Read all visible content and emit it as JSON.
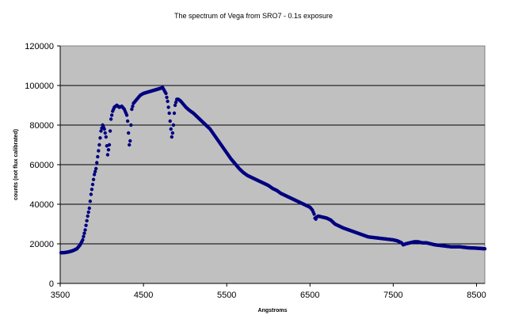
{
  "chart_data": {
    "type": "scatter",
    "title": "The spectrum of Vega from SRO7 - 0.1s exposure",
    "xlabel": "Angstroms",
    "ylabel": "counts (not flux calibrated)",
    "xlim": [
      3500,
      8600
    ],
    "ylim": [
      0,
      120000
    ],
    "xticks": [
      3500,
      4500,
      5500,
      6500,
      7500,
      8500
    ],
    "yticks": [
      0,
      20000,
      40000,
      60000,
      80000,
      100000,
      120000
    ],
    "xtick_labels": [
      "3500",
      "4500",
      "5500",
      "6500",
      "7500",
      "8500"
    ],
    "ytick_labels": [
      "0",
      "20000",
      "40000",
      "60000",
      "80000",
      "100000",
      "120000"
    ],
    "grid": "horizontal",
    "legend": "none",
    "plot_background": "#c0c0c0",
    "marker_color": "#000080",
    "series": [
      {
        "x": [
          3510,
          3560,
          3610,
          3650,
          3700,
          3740,
          3770,
          3800,
          3830,
          3850,
          3870,
          3890,
          3910,
          3930,
          3950,
          3970,
          3990,
          4010,
          4030,
          4050,
          4070,
          4090,
          4100,
          4110,
          4130,
          4150,
          4180,
          4210,
          4240,
          4270,
          4300,
          4310,
          4320,
          4330,
          4340,
          4350,
          4360,
          4380,
          4400,
          4430,
          4460,
          4500,
          4540,
          4580,
          4620,
          4660,
          4700,
          4730,
          4750,
          4770,
          4790,
          4810,
          4830,
          4840,
          4850,
          4860,
          4870,
          4880,
          4900,
          4920,
          4950,
          4980,
          5010,
          5050,
          5100,
          5150,
          5200,
          5250,
          5300,
          5350,
          5400,
          5450,
          5500,
          5550,
          5600,
          5650,
          5700,
          5750,
          5800,
          5850,
          5900,
          5950,
          6000,
          6050,
          6100,
          6150,
          6200,
          6250,
          6300,
          6350,
          6400,
          6450,
          6500,
          6530,
          6550,
          6560,
          6570,
          6580,
          6600,
          6650,
          6700,
          6750,
          6800,
          6900,
          7000,
          7100,
          7200,
          7300,
          7400,
          7500,
          7550,
          7600,
          7620,
          7650,
          7700,
          7750,
          7800,
          7850,
          7900,
          7950,
          8000,
          8100,
          8200,
          8300,
          8400,
          8500,
          8600
        ],
        "y": [
          15500,
          15600,
          16000,
          16500,
          17500,
          19500,
          22000,
          27000,
          34000,
          38000,
          45000,
          50000,
          55000,
          58000,
          64000,
          70000,
          77000,
          80000,
          78000,
          74000,
          65000,
          70000,
          77000,
          83000,
          87000,
          89000,
          90000,
          89000,
          89500,
          88000,
          85000,
          82000,
          76000,
          70000,
          72000,
          80000,
          88000,
          91000,
          92000,
          93500,
          95000,
          96000,
          96500,
          97000,
          97500,
          98000,
          98500,
          99000,
          97500,
          96000,
          92000,
          86000,
          78000,
          74000,
          76000,
          80000,
          86000,
          90000,
          93000,
          93000,
          92000,
          90500,
          89000,
          87500,
          86000,
          84000,
          82000,
          80000,
          78000,
          75000,
          72000,
          69000,
          66000,
          63000,
          60500,
          58000,
          56000,
          54500,
          53500,
          52500,
          51500,
          50500,
          49500,
          48000,
          47000,
          45500,
          44500,
          43500,
          42500,
          41500,
          40500,
          39500,
          38500,
          37000,
          35000,
          33000,
          32500,
          33500,
          34000,
          33500,
          33000,
          32000,
          30000,
          28000,
          26500,
          25000,
          23500,
          23000,
          22500,
          22000,
          21500,
          20500,
          19500,
          20000,
          20500,
          21000,
          21000,
          20500,
          20500,
          20000,
          19500,
          19000,
          18500,
          18500,
          18000,
          17800,
          17500
        ]
      }
    ]
  }
}
